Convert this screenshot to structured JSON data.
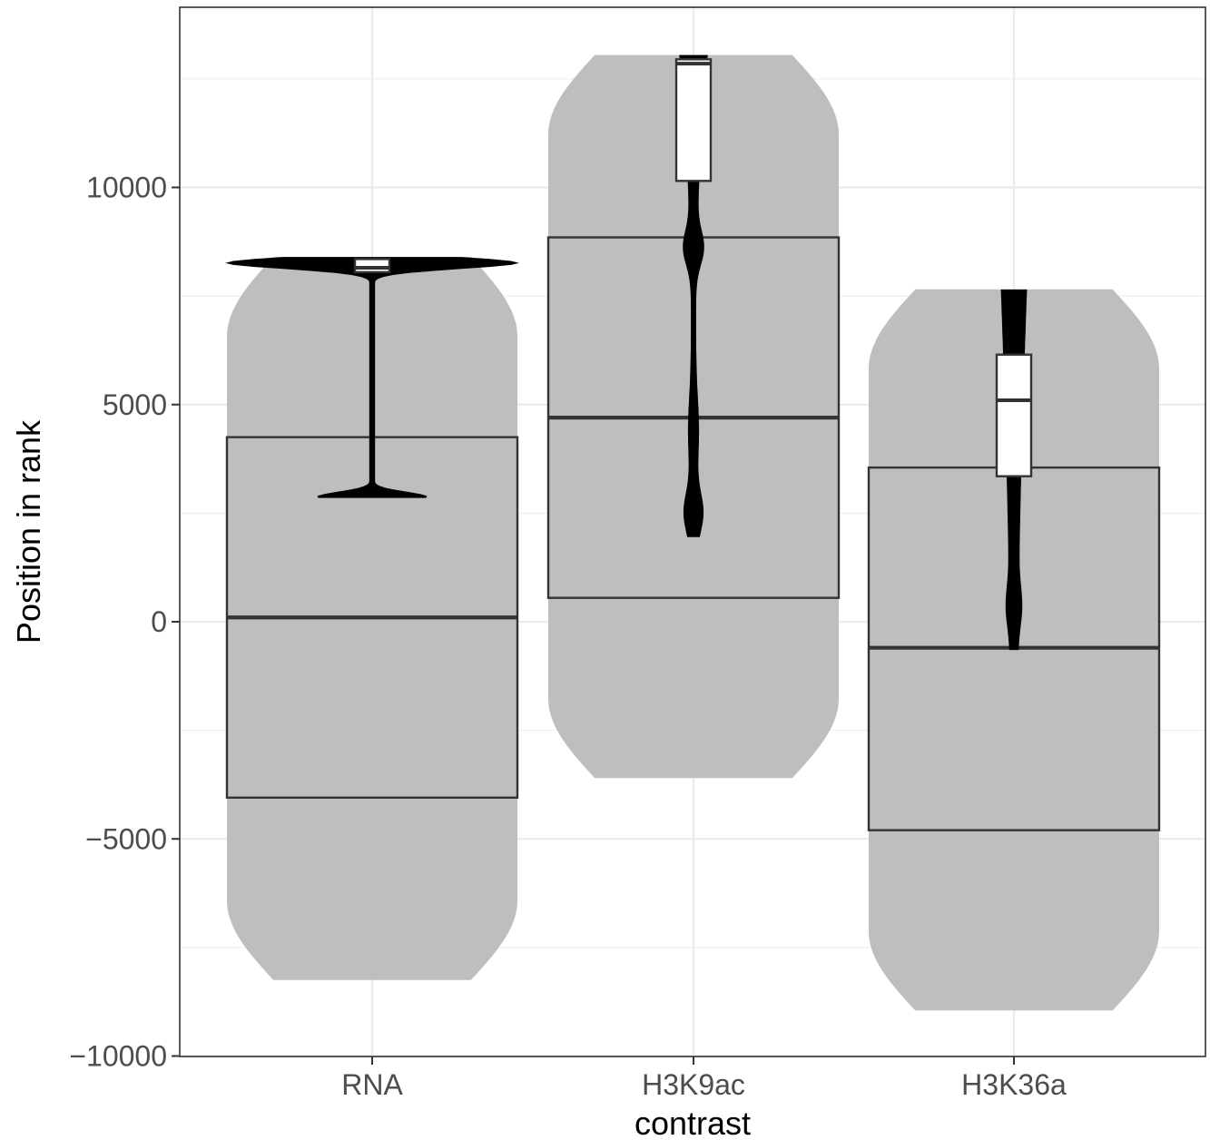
{
  "chart_data": {
    "type": "violin",
    "xlabel": "contrast",
    "ylabel": "Position in rank",
    "ylim": [
      -10000,
      14000
    ],
    "yticks": [
      -10000,
      -5000,
      0,
      5000,
      10000
    ],
    "grid": true,
    "theme": "bw",
    "categories": [
      "RNA",
      "H3K9ac",
      "H3K36a"
    ],
    "series": [
      {
        "role": "all genes (background)",
        "color": "#bebebe",
        "groups": [
          {
            "category": "RNA",
            "min": -8250,
            "max": 8400,
            "q1": -4050,
            "median": 100,
            "q3": 4250
          },
          {
            "category": "H3K9ac",
            "min": -3600,
            "max": 13050,
            "q1": 550,
            "median": 4700,
            "q3": 8850
          },
          {
            "category": "H3K36a",
            "min": -8950,
            "max": 7650,
            "q1": -4800,
            "median": -600,
            "q3": 3550
          }
        ]
      },
      {
        "role": "selected genes (foreground)",
        "color": "#000000",
        "groups": [
          {
            "category": "RNA",
            "min": 2850,
            "max": 8400,
            "q1": 8050,
            "median": 8150,
            "q3": 8350
          },
          {
            "category": "H3K9ac",
            "min": 1950,
            "max": 13050,
            "q1": 10150,
            "median": 12850,
            "q3": 12950
          },
          {
            "category": "H3K36a",
            "min": -650,
            "max": 7650,
            "q1": 3350,
            "median": 5100,
            "q3": 6150
          }
        ]
      }
    ]
  }
}
